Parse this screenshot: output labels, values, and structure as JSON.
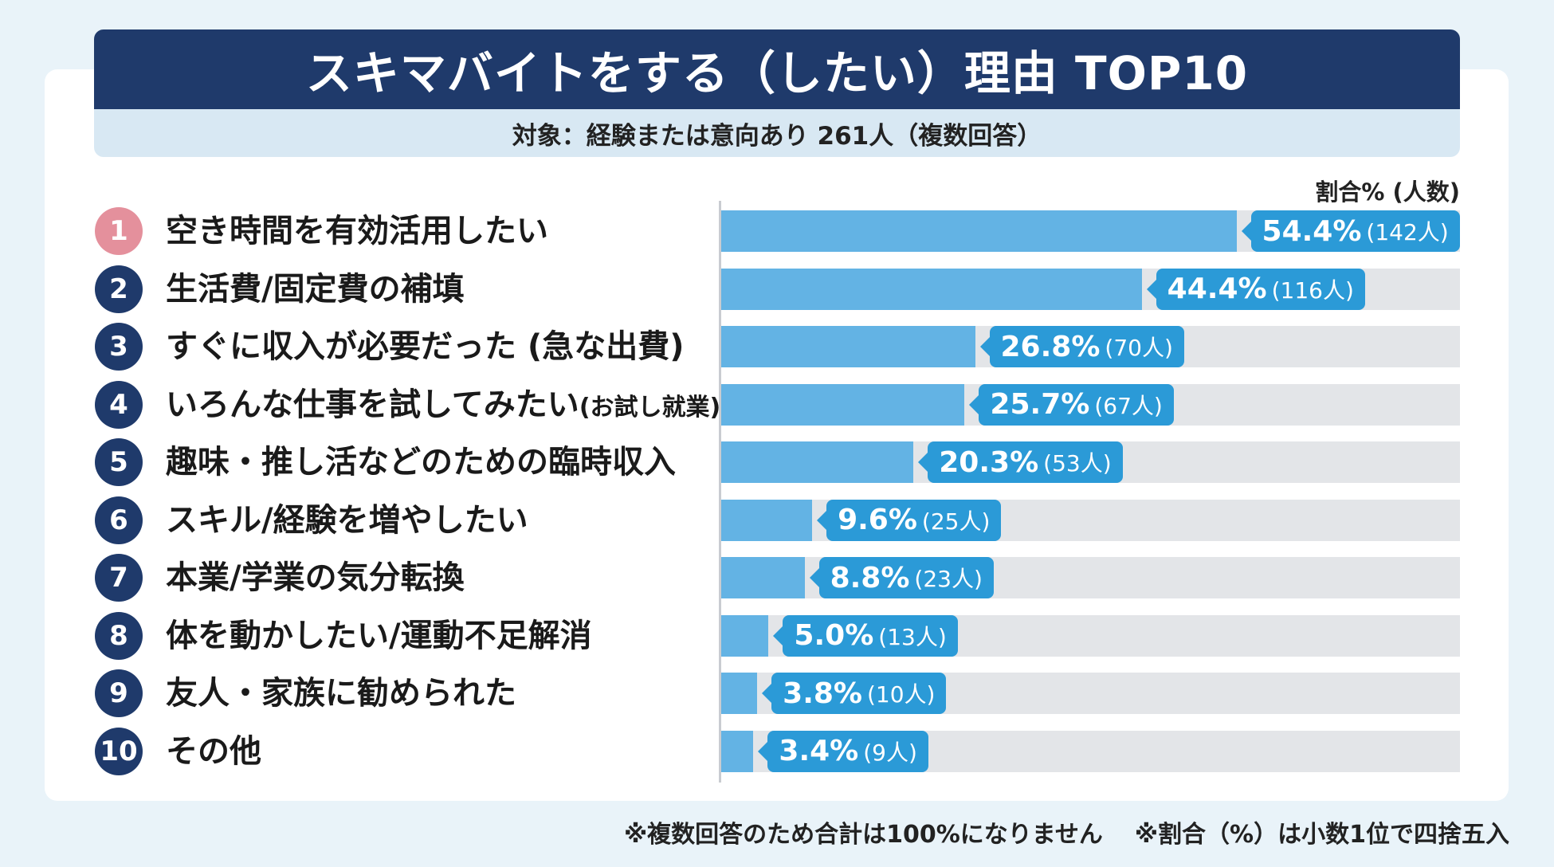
{
  "header": {
    "title": "スキマバイトをする（したい）理由 TOP10",
    "subtitle": "対象：経験または意向あり 261人（複数回答）"
  },
  "chart_data": {
    "type": "bar",
    "orientation": "horizontal",
    "value_label": "割合% (人数)",
    "xlim": [
      0,
      78
    ],
    "grid": false,
    "colors": {
      "fill": "#63b3e4",
      "track": "#e3e5e8",
      "label": "#2b9ad7",
      "rank_first": "#e4909c",
      "rank": "#1f3a6b"
    },
    "items": [
      {
        "rank": "1",
        "category": "空き時間を有効活用したい",
        "note": "",
        "value": 54.4,
        "pct": "54.4%",
        "count": "(142人)"
      },
      {
        "rank": "2",
        "category": "生活費/固定費の補填",
        "note": "",
        "value": 44.4,
        "pct": "44.4%",
        "count": "(116人)"
      },
      {
        "rank": "3",
        "category": "すぐに収入が必要だった (急な出費)",
        "note": "",
        "value": 26.8,
        "pct": "26.8%",
        "count": "(70人)"
      },
      {
        "rank": "4",
        "category": "いろんな仕事を試してみたい",
        "note": "(お試し就業)",
        "value": 25.7,
        "pct": "25.7%",
        "count": "(67人)"
      },
      {
        "rank": "5",
        "category": "趣味・推し活などのための臨時収入",
        "note": "",
        "value": 20.3,
        "pct": "20.3%",
        "count": "(53人)"
      },
      {
        "rank": "6",
        "category": "スキル/経験を増やしたい",
        "note": "",
        "value": 9.6,
        "pct": "9.6%",
        "count": "(25人)"
      },
      {
        "rank": "7",
        "category": "本業/学業の気分転換",
        "note": "",
        "value": 8.8,
        "pct": "8.8%",
        "count": "(23人)"
      },
      {
        "rank": "8",
        "category": "体を動かしたい/運動不足解消",
        "note": "",
        "value": 5.0,
        "pct": "5.0%",
        "count": "(13人)"
      },
      {
        "rank": "9",
        "category": "友人・家族に勧められた",
        "note": "",
        "value": 3.8,
        "pct": "3.8%",
        "count": "(10人)"
      },
      {
        "rank": "10",
        "category": "その他",
        "note": "",
        "value": 3.4,
        "pct": "3.4%",
        "count": "(9人)"
      }
    ]
  },
  "footnotes": [
    "※複数回答のため合計は100%になりません",
    "※割合（%）は小数1位で四捨五入"
  ]
}
